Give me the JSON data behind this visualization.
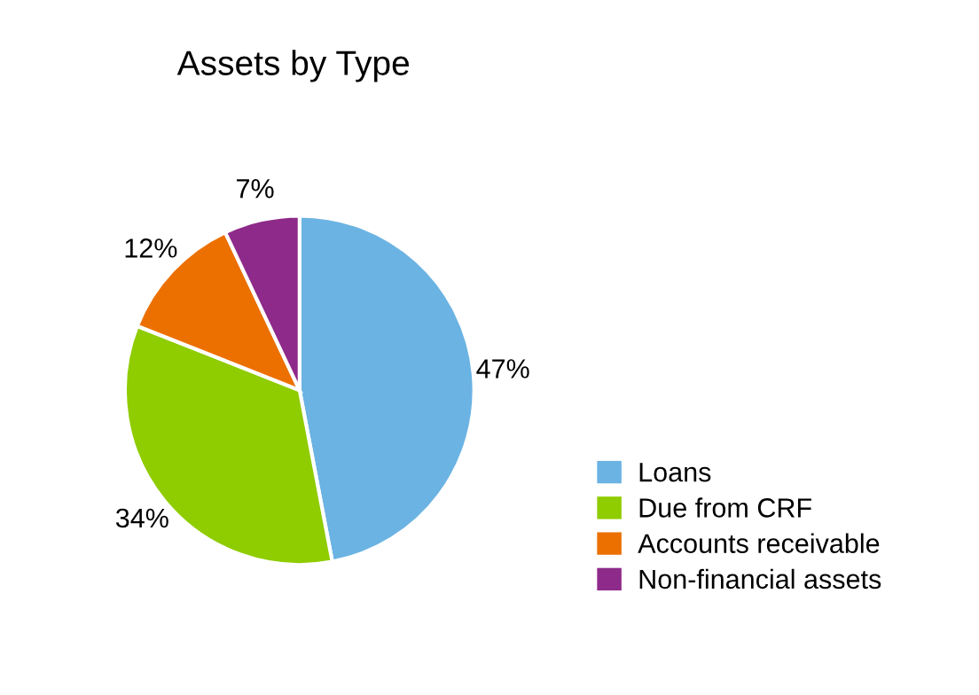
{
  "chart_data": {
    "type": "pie",
    "title": "Assets by Type",
    "categories": [
      "Loans",
      "Due from CRF",
      "Accounts receivable",
      "Non-financial assets"
    ],
    "values": [
      47,
      34,
      12,
      7
    ],
    "colors": [
      "#6bb3e3",
      "#8fcc00",
      "#ec7000",
      "#8e2a8a"
    ],
    "value_labels": [
      "47%",
      "34%",
      "12%",
      "7%"
    ],
    "legend": "right"
  }
}
